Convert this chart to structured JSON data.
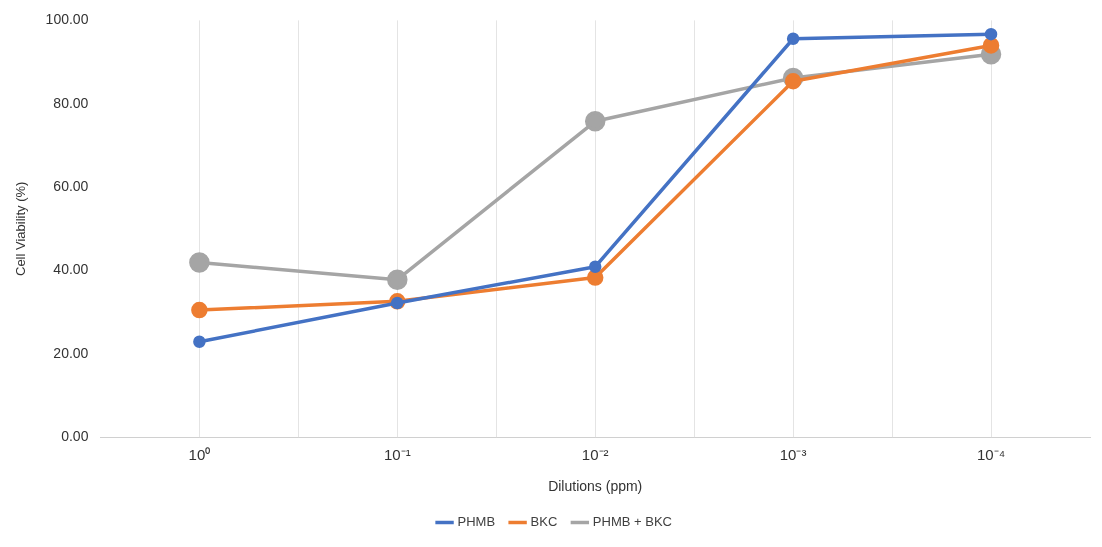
{
  "chart_data": {
    "type": "line",
    "xlabel": "Dilutions (ppm)",
    "ylabel": "Cell Viability (%)",
    "categories": [
      "10⁰",
      "10⁻¹",
      "10⁻²",
      "10⁻³",
      "10⁻⁴"
    ],
    "series": [
      {
        "name": "PHMB",
        "color": "#4472c4",
        "values": [
          22.9,
          32.2,
          40.9,
          95.6,
          96.7
        ]
      },
      {
        "name": "BKC",
        "color": "#ed7d31",
        "values": [
          30.5,
          32.6,
          38.3,
          85.4,
          94.0
        ]
      },
      {
        "name": "PHMB + BKC",
        "color": "#a5a5a5",
        "values": [
          41.9,
          37.8,
          75.8,
          86.2,
          91.9
        ]
      }
    ],
    "ylim": [
      0,
      100
    ],
    "yticks": [
      {
        "value": 0,
        "label": "0.00"
      },
      {
        "value": 20,
        "label": "20.00"
      },
      {
        "value": 40,
        "label": "40.00"
      },
      {
        "value": 60,
        "label": "60.00"
      },
      {
        "value": 80,
        "label": "80.00"
      },
      {
        "value": 100,
        "label": "100.00"
      }
    ],
    "grid": "x",
    "legend": "bottom",
    "marker": "circle",
    "line_style": "solid"
  }
}
